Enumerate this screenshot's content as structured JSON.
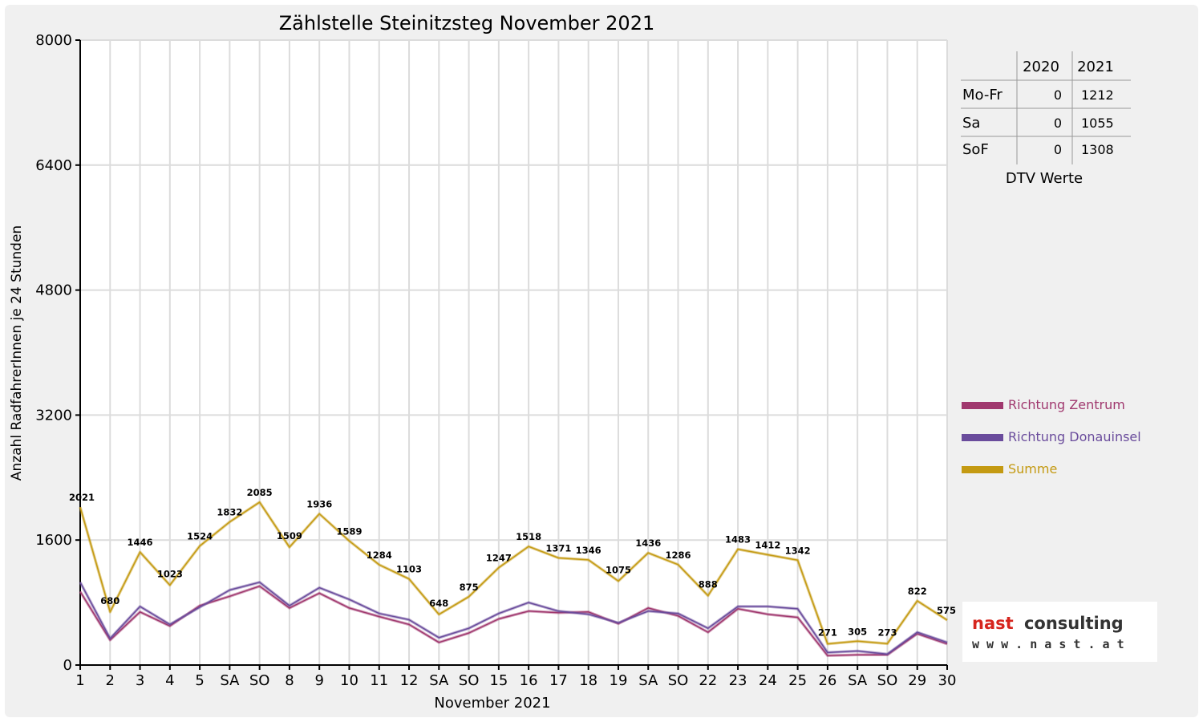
{
  "colors": {
    "zentrum": "#a0386e",
    "donauinsel": "#6a4c9c",
    "summe": "#c49a12",
    "weekend_red": "#ff0000"
  },
  "chart_data": {
    "type": "line",
    "title": "Zählstelle Steinitzsteg November 2021",
    "xlabel": "November 2021",
    "ylabel": "Anzahl RadfahrerInnen je 24 Stunden",
    "ylim": [
      0,
      8000
    ],
    "yticks": [
      "0",
      "1600",
      "3200",
      "4800",
      "6400",
      "8000"
    ],
    "grid": true,
    "legend_position": "right",
    "categories": [
      "1",
      "2",
      "3",
      "4",
      "5",
      "SA",
      "SO",
      "8",
      "9",
      "10",
      "11",
      "12",
      "SA",
      "SO",
      "15",
      "16",
      "17",
      "18",
      "19",
      "SA",
      "SO",
      "22",
      "23",
      "24",
      "25",
      "26",
      "SA",
      "SO",
      "29",
      "30"
    ],
    "red_categories": [
      0,
      6,
      13,
      20,
      27
    ],
    "series": [
      {
        "name": "Richtung Zentrum",
        "color_key": "zentrum",
        "values": [
          940,
          320,
          680,
          500,
          760,
          880,
          1010,
          730,
          920,
          730,
          620,
          520,
          290,
          410,
          590,
          690,
          670,
          680,
          530,
          730,
          630,
          420,
          720,
          650,
          610,
          120,
          130,
          130,
          400,
          270
        ]
      },
      {
        "name": "Richtung Donauinsel",
        "color_key": "donauinsel",
        "values": [
          1060,
          340,
          750,
          520,
          740,
          960,
          1060,
          760,
          990,
          840,
          660,
          580,
          350,
          470,
          660,
          800,
          690,
          650,
          540,
          690,
          660,
          470,
          750,
          750,
          720,
          160,
          180,
          140,
          420,
          290
        ]
      },
      {
        "name": "Summe",
        "color_key": "summe",
        "values": [
          2021,
          680,
          1446,
          1023,
          1524,
          1832,
          2085,
          1509,
          1936,
          1589,
          1284,
          1103,
          648,
          875,
          1247,
          1518,
          1371,
          1346,
          1075,
          1436,
          1286,
          888,
          1483,
          1412,
          1342,
          271,
          305,
          273,
          822,
          575
        ]
      }
    ],
    "data_labels": [
      "2021",
      "680",
      "1446",
      "1023",
      "1524",
      "1832",
      "2085",
      "1509",
      "1936",
      "1589",
      "1284",
      "1103",
      "648",
      "875",
      "1247",
      "1518",
      "1371",
      "1346",
      "1075",
      "1436",
      "1286",
      "888",
      "1483",
      "1412",
      "1342",
      "271",
      "305",
      "273",
      "822",
      "575"
    ]
  },
  "dtv_table": {
    "headers": [
      "",
      "2020",
      "2021"
    ],
    "rows": [
      {
        "label": "Mo-Fr",
        "v2020": "0",
        "v2021": "1212"
      },
      {
        "label": "Sa",
        "v2020": "0",
        "v2021": "1055"
      },
      {
        "label": "SoF",
        "v2020": "0",
        "v2021": "1308"
      }
    ],
    "caption": "DTV Werte"
  },
  "logo": {
    "brand_first": "nast",
    "brand_second": "consulting",
    "url": "w w w . n a s t . a t"
  }
}
